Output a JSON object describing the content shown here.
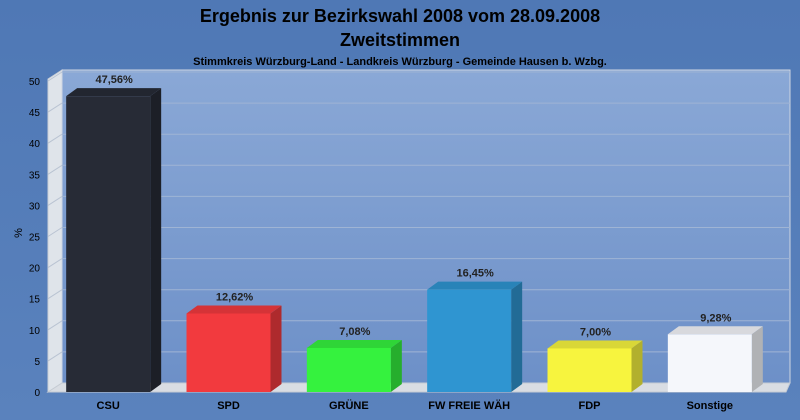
{
  "chart_data": {
    "type": "bar",
    "title": "Ergebnis zur Bezirkswahl 2008 vom 28.09.2008",
    "subtitle": "Zweitstimmen",
    "caption": "Stimmkreis Würzburg-Land - Landkreis Würzburg - Gemeinde Hausen b. Wzbg.",
    "ylabel": "%",
    "xlabel": "",
    "ylim": [
      0,
      50
    ],
    "yticks": [
      0,
      5,
      10,
      15,
      20,
      25,
      30,
      35,
      40,
      45,
      50
    ],
    "grid": true,
    "legend": "none",
    "categories": [
      "CSU",
      "SPD",
      "GRÜNE",
      "FW FREIE WÄH",
      "FDP",
      "Sonstige"
    ],
    "values": [
      47.56,
      12.62,
      7.08,
      16.45,
      7.0,
      9.28
    ],
    "value_labels": [
      "47,56%",
      "12,62%",
      "7,08%",
      "16,45%",
      "7,00%",
      "9,28%"
    ],
    "colors": [
      "#272b36",
      "#f23a3e",
      "#35f23e",
      "#2f95d1",
      "#f7f43e",
      "#f5f7fb"
    ]
  }
}
